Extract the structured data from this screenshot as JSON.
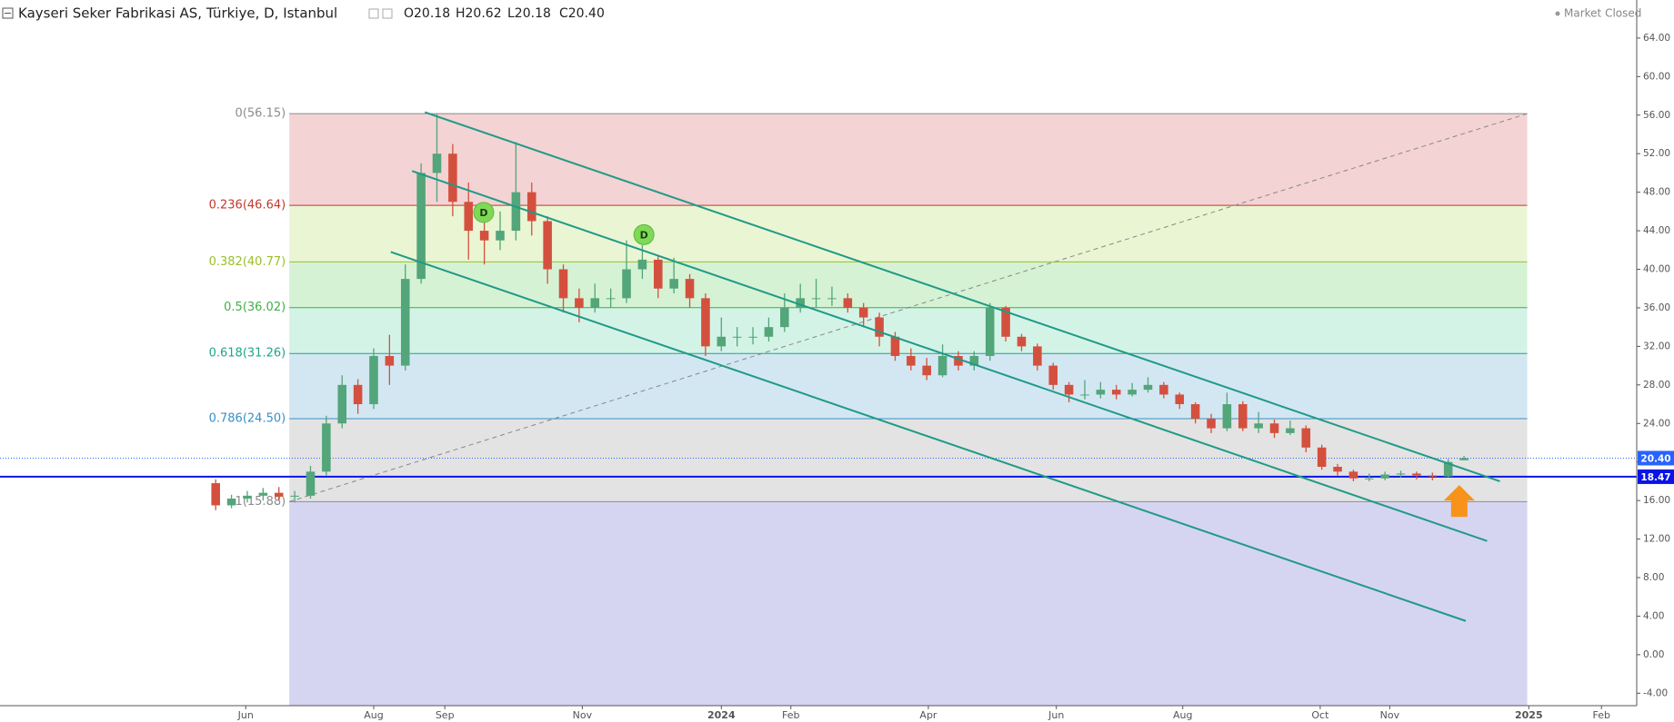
{
  "chart_data": {
    "type": "candlestick",
    "title": "Kayseri Seker Fabrikasi AS, Türkiye, D, Istanbul",
    "ohlc_header": [
      "O20.18",
      "H20.62",
      "L20.18",
      "C20.40"
    ],
    "status": "Market Closed",
    "up_color": "#53a57a",
    "down_color": "#d4503e",
    "x": [
      0,
      1,
      2,
      3,
      4,
      5,
      6,
      7,
      8,
      9,
      10,
      11,
      12,
      13,
      14,
      15,
      16,
      17,
      18,
      19,
      20,
      21,
      22,
      23,
      24,
      25,
      26,
      27,
      28,
      29,
      30,
      31,
      32,
      33,
      34,
      35,
      36,
      37,
      38,
      39,
      40,
      41,
      42,
      43,
      44,
      45,
      46,
      47,
      48,
      49,
      50,
      51,
      52,
      53,
      54,
      55,
      56,
      57,
      58,
      59,
      60,
      61,
      62,
      63,
      64,
      65,
      66,
      67,
      68,
      69,
      70,
      71,
      72,
      73,
      74,
      75,
      76,
      77,
      78,
      79
    ],
    "ohlc": [
      [
        17.8,
        18.2,
        15.0,
        15.5
      ],
      [
        15.5,
        16.6,
        15.2,
        16.2
      ],
      [
        16.2,
        17.0,
        15.8,
        16.5
      ],
      [
        16.5,
        17.3,
        16.0,
        16.8
      ],
      [
        16.8,
        17.4,
        16.0,
        16.4
      ],
      [
        16.4,
        17.0,
        15.8,
        16.5
      ],
      [
        16.5,
        19.6,
        16.2,
        19.0
      ],
      [
        19.0,
        24.8,
        18.6,
        24.0
      ],
      [
        24.0,
        29.0,
        23.5,
        28.0
      ],
      [
        28.0,
        28.6,
        25.0,
        26.0
      ],
      [
        26.0,
        31.8,
        25.5,
        31.0
      ],
      [
        31.0,
        33.2,
        28.0,
        30.0
      ],
      [
        30.0,
        40.5,
        29.5,
        39.0
      ],
      [
        39.0,
        51.0,
        38.5,
        50.0
      ],
      [
        50.0,
        56.15,
        47.0,
        52.0
      ],
      [
        52.0,
        53.0,
        45.5,
        47.0
      ],
      [
        47.0,
        49.0,
        41.0,
        44.0
      ],
      [
        44.0,
        46.5,
        40.5,
        43.0
      ],
      [
        43.0,
        46.0,
        42.0,
        44.0
      ],
      [
        44.0,
        53.2,
        43.0,
        48.0
      ],
      [
        48.0,
        49.0,
        43.5,
        45.0
      ],
      [
        45.0,
        45.5,
        38.5,
        40.0
      ],
      [
        40.0,
        40.5,
        35.5,
        37.0
      ],
      [
        37.0,
        38.0,
        34.5,
        36.0
      ],
      [
        36.0,
        38.5,
        35.5,
        37.0
      ],
      [
        37.0,
        38.0,
        36.0,
        37.0
      ],
      [
        37.0,
        43.0,
        36.5,
        40.0
      ],
      [
        40.0,
        42.5,
        39.0,
        41.0
      ],
      [
        41.0,
        41.5,
        37.0,
        38.0
      ],
      [
        38.0,
        41.2,
        37.5,
        39.0
      ],
      [
        39.0,
        39.5,
        36.0,
        37.0
      ],
      [
        37.0,
        37.5,
        31.0,
        32.0
      ],
      [
        32.0,
        35.0,
        31.5,
        33.0
      ],
      [
        33.0,
        34.0,
        32.0,
        33.0
      ],
      [
        33.0,
        34.0,
        32.2,
        33.0
      ],
      [
        33.0,
        35.0,
        32.5,
        34.0
      ],
      [
        34.0,
        37.5,
        33.5,
        36.0
      ],
      [
        36.0,
        38.5,
        35.5,
        37.0
      ],
      [
        37.0,
        39.0,
        36.0,
        37.0
      ],
      [
        37.0,
        38.2,
        36.2,
        37.0
      ],
      [
        37.0,
        37.5,
        35.5,
        36.0
      ],
      [
        36.0,
        36.5,
        34.0,
        35.0
      ],
      [
        35.0,
        35.5,
        32.0,
        33.0
      ],
      [
        33.0,
        33.5,
        30.5,
        31.0
      ],
      [
        31.0,
        31.8,
        29.5,
        30.0
      ],
      [
        30.0,
        30.8,
        28.5,
        29.0
      ],
      [
        29.0,
        32.2,
        28.8,
        31.0
      ],
      [
        31.0,
        31.5,
        29.5,
        30.0
      ],
      [
        30.0,
        31.5,
        29.5,
        31.0
      ],
      [
        31.0,
        36.5,
        30.5,
        36.0
      ],
      [
        36.0,
        36.2,
        32.5,
        33.0
      ],
      [
        33.0,
        33.3,
        31.5,
        32.0
      ],
      [
        32.0,
        32.3,
        29.5,
        30.0
      ],
      [
        30.0,
        30.3,
        27.5,
        28.0
      ],
      [
        28.0,
        28.3,
        26.2,
        27.0
      ],
      [
        27.0,
        28.5,
        26.5,
        27.0
      ],
      [
        27.0,
        28.3,
        26.6,
        27.5
      ],
      [
        27.5,
        28.0,
        26.5,
        27.0
      ],
      [
        27.0,
        28.2,
        26.8,
        27.5
      ],
      [
        27.5,
        28.8,
        27.2,
        28.0
      ],
      [
        28.0,
        28.3,
        26.6,
        27.0
      ],
      [
        27.0,
        27.2,
        25.5,
        26.0
      ],
      [
        26.0,
        26.2,
        24.0,
        24.5
      ],
      [
        24.5,
        25.0,
        23.0,
        23.5
      ],
      [
        23.5,
        27.2,
        23.2,
        26.0
      ],
      [
        26.0,
        26.3,
        23.2,
        23.5
      ],
      [
        23.5,
        25.2,
        23.0,
        24.0
      ],
      [
        24.0,
        24.4,
        22.5,
        23.0
      ],
      [
        23.0,
        24.3,
        22.8,
        23.5
      ],
      [
        23.5,
        23.8,
        21.0,
        21.5
      ],
      [
        21.5,
        21.8,
        19.2,
        19.5
      ],
      [
        19.5,
        19.8,
        18.6,
        19.0
      ],
      [
        19.0,
        19.2,
        18.0,
        18.3
      ],
      [
        18.3,
        18.8,
        18.0,
        18.3
      ],
      [
        18.3,
        19.0,
        18.1,
        18.7
      ],
      [
        18.7,
        19.1,
        18.4,
        18.8
      ],
      [
        18.8,
        19.0,
        18.2,
        18.6
      ],
      [
        18.6,
        18.9,
        18.1,
        18.5
      ],
      [
        18.5,
        20.3,
        18.4,
        20.0
      ],
      [
        20.18,
        20.62,
        20.18,
        20.4
      ]
    ],
    "xlim": [
      -13.65,
      89.93
    ],
    "ylim": [
      -5.29,
      67.95
    ],
    "xticks": [
      {
        "value": 1.9,
        "label": "Jun"
      },
      {
        "value": 10.0,
        "label": "Aug"
      },
      {
        "value": 14.5,
        "label": "Sep"
      },
      {
        "value": 23.2,
        "label": "Nov"
      },
      {
        "value": 32.0,
        "label": "2024"
      },
      {
        "value": 36.4,
        "label": "Feb"
      },
      {
        "value": 45.1,
        "label": "Apr"
      },
      {
        "value": 53.2,
        "label": "Jun"
      },
      {
        "value": 61.2,
        "label": "Aug"
      },
      {
        "value": 69.9,
        "label": "Oct"
      },
      {
        "value": 74.3,
        "label": "Nov"
      },
      {
        "value": 83.1,
        "label": "2025"
      },
      {
        "value": 87.7,
        "label": "Feb"
      }
    ],
    "yticks": [
      {
        "value": -4,
        "label": "-4.00"
      },
      {
        "value": 0,
        "label": "0.00"
      },
      {
        "value": 4,
        "label": "4.00"
      },
      {
        "value": 8,
        "label": "8.00"
      },
      {
        "value": 12,
        "label": "12.00"
      },
      {
        "value": 16,
        "label": "16.00"
      },
      {
        "value": 20,
        "label": "20.00"
      },
      {
        "value": 24,
        "label": "24.00"
      },
      {
        "value": 28,
        "label": "28.00"
      },
      {
        "value": 32,
        "label": "32.00"
      },
      {
        "value": 36,
        "label": "36.00"
      },
      {
        "value": 40,
        "label": "40.00"
      },
      {
        "value": 44,
        "label": "44.00"
      },
      {
        "value": 48,
        "label": "48.00"
      },
      {
        "value": 52,
        "label": "52.00"
      },
      {
        "value": 56,
        "label": "56.00"
      },
      {
        "value": 60,
        "label": "60.00"
      },
      {
        "value": 64,
        "label": "64.00"
      }
    ],
    "fib": {
      "x": [
        4.66,
        83.0
      ],
      "levels": [
        {
          "price": 56.15,
          "label": "0(56.15)",
          "color": "#8c8c8c"
        },
        {
          "price": 46.64,
          "label": "0.236(46.64)",
          "color": "#c0392b"
        },
        {
          "price": 40.77,
          "label": "0.382(40.77)",
          "color": "#9bbf2e"
        },
        {
          "price": 36.02,
          "label": "0.5(36.02)",
          "color": "#3fae49"
        },
        {
          "price": 31.26,
          "label": "0.618(31.26)",
          "color": "#1fa58a"
        },
        {
          "price": 24.5,
          "label": "0.786(24.50)",
          "color": "#3a8fc7"
        },
        {
          "price": 15.88,
          "label": "1(15.88)",
          "color": "#8c8c8c"
        }
      ],
      "zone_colors": [
        "#f3d3d3",
        "#eaf5d3",
        "#d5f2d4",
        "#d4f3e7",
        "#d3e7f2",
        "#e3e3e3",
        "#d5d5f2"
      ]
    },
    "fib_trend": {
      "x": [
        4.66,
        83.0
      ],
      "y": [
        15.88,
        56.15
      ]
    },
    "price_lines": [
      {
        "value": 20.4,
        "label": "20.40",
        "color": "#2962ff",
        "style": "dotted"
      },
      {
        "value": 18.47,
        "label": "18.47",
        "color": "#0a14e6",
        "style": "solid"
      }
    ],
    "trend_lines": [
      {
        "x": [
          13.24,
          81.27
        ],
        "y": [
          56.3,
          18.0
        ]
      },
      {
        "x": [
          12.43,
          80.46
        ],
        "y": [
          50.2,
          11.8
        ]
      },
      {
        "x": [
          11.08,
          79.11
        ],
        "y": [
          41.8,
          3.5
        ]
      }
    ],
    "trend_color": "#1f9a87",
    "events": [
      {
        "x": 16.96,
        "y": 45.9,
        "label": "D"
      },
      {
        "x": 27.1,
        "y": 43.6,
        "label": "D"
      }
    ],
    "arrow": {
      "x": 78.7,
      "y": 17.6,
      "color": "#f7931a"
    }
  }
}
